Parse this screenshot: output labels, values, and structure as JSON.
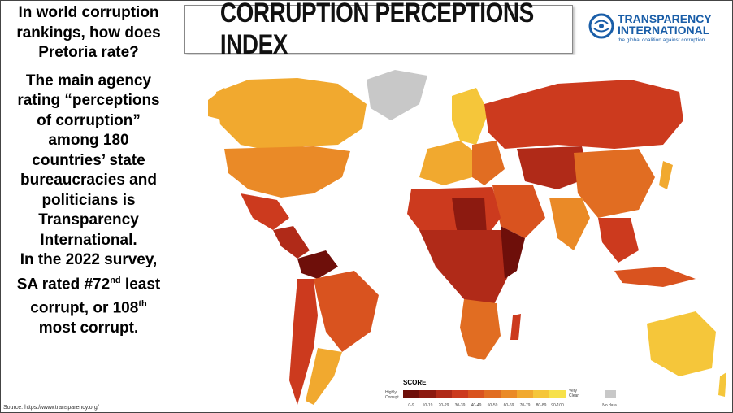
{
  "left_panel": {
    "question": "In world corruption rankings, how does Pretoria rate?",
    "body_lines": [
      "The main agency",
      "rating “perceptions",
      "of corruption”",
      "among 180",
      "countries’ state",
      "bureaucracies and",
      "politicians is",
      "Transparency",
      "International."
    ],
    "survey_line1": "In the 2022 survey,",
    "survey_line2_prefix": "SA rated #72",
    "survey_line2_sup": "nd",
    "survey_line2_suffix": " least",
    "survey_line3_prefix": "corrupt, or 108",
    "survey_line3_sup": "th",
    "survey_line4": "most corrupt."
  },
  "source": "Source: https://www.transparency.org/",
  "title": "CORRUPTION PERCEPTIONS INDEX",
  "logo": {
    "name_line1": "TRANSPARENCY",
    "name_line2": "INTERNATIONAL",
    "tagline": "the global coalition against corruption"
  },
  "legend": {
    "title": "SCORE",
    "low_label_1": "Highly",
    "low_label_2": "Corrupt",
    "high_label_1": "Very",
    "high_label_2": "Clean",
    "bins": [
      "0-9",
      "10-19",
      "20-29",
      "30-39",
      "40-49",
      "50-59",
      "60-69",
      "70-79",
      "80-89",
      "90-100"
    ],
    "colors": [
      "#6e0f0a",
      "#8c1a10",
      "#b02a18",
      "#cc3a1e",
      "#d9531f",
      "#e16d22",
      "#ea8a27",
      "#f1a92f",
      "#f5c63a",
      "#f7e14a"
    ],
    "no_data_label": "No data",
    "no_data_color": "#c8c8c8"
  }
}
